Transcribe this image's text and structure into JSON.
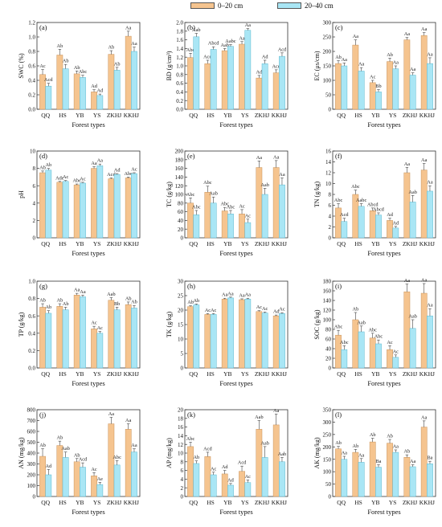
{
  "legend": {
    "items": [
      {
        "label": "0–20 cm",
        "color": "#f5c48f"
      },
      {
        "label": "20–40 cm",
        "color": "#a9e6f5"
      }
    ]
  },
  "chart_data": [
    {
      "type": "bar",
      "panel": "(a)",
      "ylabel": "SWC (%)",
      "xlabel": "Forest types",
      "categories": [
        "QQ",
        "HS",
        "YB",
        "YS",
        "ZKHJ",
        "KKHJ"
      ],
      "ylim": [
        0,
        1.2
      ],
      "yticks": [
        "0.0",
        "0.2",
        "0.4",
        "0.6",
        "0.8",
        "1.0",
        "1.2"
      ],
      "series": [
        {
          "name": "0–20 cm",
          "values": [
            0.48,
            0.75,
            0.49,
            0.24,
            0.76,
            1.01
          ],
          "errors": [
            0.07,
            0.08,
            0.04,
            0.03,
            0.05,
            0.07
          ],
          "letters": [
            "Ac",
            "Ab",
            "Ab",
            "Ad",
            "Ab",
            "Aa"
          ]
        },
        {
          "name": "20–40 cm",
          "values": [
            0.32,
            0.56,
            0.44,
            0.19,
            0.54,
            0.8
          ],
          "errors": [
            0.04,
            0.06,
            0.03,
            0.02,
            0.04,
            0.06
          ],
          "letters": [
            "Acd",
            "Ab",
            "Abc",
            "Ad",
            "Ab",
            "Aa"
          ]
        }
      ]
    },
    {
      "type": "bar",
      "panel": "(b)",
      "ylabel": "BD (g/cm³)",
      "xlabel": "Forest types",
      "categories": [
        "QQ",
        "HS",
        "YB",
        "YS",
        "ZKHJ",
        "KKHJ"
      ],
      "ylim": [
        0,
        2.0
      ],
      "yticks": [
        "0.0",
        "0.2",
        "0.4",
        "0.6",
        "0.8",
        "1.0",
        "1.2",
        "1.4",
        "1.6",
        "1.8",
        "2.0"
      ],
      "series": [
        {
          "name": "0–20 cm",
          "values": [
            1.19,
            1.05,
            1.35,
            1.5,
            0.72,
            0.84
          ],
          "errors": [
            0.1,
            0.08,
            0.05,
            0.06,
            0.06,
            0.07
          ],
          "letters": [
            "Abc",
            "Acd",
            "Aab",
            "Aa",
            "Ad",
            "Acd"
          ]
        },
        {
          "name": "20–40 cm",
          "values": [
            1.67,
            1.38,
            1.45,
            1.82,
            1.05,
            1.22
          ],
          "errors": [
            0.08,
            0.06,
            0.04,
            0.04,
            0.08,
            0.08
          ],
          "letters": [
            "Aab",
            "Abcd",
            "Aabc",
            "Aa",
            "Ad",
            "Acd"
          ]
        }
      ]
    },
    {
      "type": "bar",
      "panel": "(c)",
      "ylabel": "EC (μs/cm)",
      "xlabel": "Forest types",
      "categories": [
        "QQ",
        "HS",
        "YB",
        "YS",
        "ZKHJ",
        "KKHJ"
      ],
      "ylim": [
        0,
        300
      ],
      "yticks": [
        "0",
        "50",
        "100",
        "150",
        "200",
        "250",
        "300"
      ],
      "series": [
        {
          "name": "0–20 cm",
          "values": [
            158,
            222,
            92,
            165,
            240,
            255
          ],
          "errors": [
            10,
            18,
            8,
            12,
            8,
            10
          ],
          "letters": [
            "Ab",
            "Aa",
            "Ac",
            "Ab",
            "Aa",
            "Aa"
          ]
        },
        {
          "name": "20–40 cm",
          "values": [
            150,
            132,
            60,
            140,
            118,
            158
          ],
          "errors": [
            10,
            12,
            8,
            10,
            8,
            20
          ],
          "letters": [
            "Aa",
            "Aa",
            "Bb",
            "Aa",
            "Aa",
            "Aa"
          ]
        }
      ]
    },
    {
      "type": "bar",
      "panel": "(d)",
      "ylabel": "pH",
      "xlabel": "Forest types",
      "categories": [
        "QQ",
        "HS",
        "YB",
        "YS",
        "ZKHJ",
        "KKHJ"
      ],
      "ylim": [
        0,
        10
      ],
      "yticks": [
        "0",
        "2",
        "4",
        "6",
        "8",
        "10"
      ],
      "series": [
        {
          "name": "0–20 cm",
          "values": [
            7.5,
            6.4,
            6.1,
            8.0,
            6.8,
            6.9
          ],
          "errors": [
            0.2,
            0.1,
            0.1,
            0.2,
            0.1,
            0.1
          ],
          "letters": [
            "Ab",
            "Adc",
            "Abc",
            "Aa",
            "Acd",
            "Abc"
          ]
        },
        {
          "name": "20–40 cm",
          "values": [
            7.8,
            6.5,
            6.3,
            8.3,
            7.3,
            7.4
          ],
          "errors": [
            0.2,
            0.1,
            0.1,
            0.2,
            0.1,
            0.1
          ],
          "letters": [
            "Ab",
            "Ac",
            "Ac",
            "Aa",
            "Ad",
            "Ac"
          ]
        }
      ]
    },
    {
      "type": "bar",
      "panel": "(e)",
      "ylabel": "TC (g/kg)",
      "xlabel": "Forest types",
      "categories": [
        "QQ",
        "HS",
        "YB",
        "YS",
        "ZKHJ",
        "KKHJ"
      ],
      "ylim": [
        0,
        200
      ],
      "yticks": [
        "0",
        "20",
        "40",
        "60",
        "80",
        "100",
        "120",
        "140",
        "160",
        "180",
        "200"
      ],
      "series": [
        {
          "name": "0–20 cm",
          "values": [
            80,
            105,
            62,
            55,
            162,
            162
          ],
          "errors": [
            12,
            14,
            8,
            10,
            15,
            16
          ],
          "letters": [
            "Abc",
            "Abc",
            "Abc",
            "Ac",
            "Aa",
            "Aa"
          ]
        },
        {
          "name": "20–40 cm",
          "values": [
            53,
            80,
            55,
            35,
            100,
            122
          ],
          "errors": [
            10,
            14,
            8,
            8,
            14,
            16
          ],
          "letters": [
            "Abc",
            "Aab",
            "Abc",
            "Ac",
            "Aab",
            "Aa"
          ]
        }
      ]
    },
    {
      "type": "bar",
      "panel": "(f)",
      "ylabel": "TN (g/kg)",
      "xlabel": "Forest types",
      "categories": [
        "QQ",
        "HS",
        "YB",
        "YS",
        "ZKHJ",
        "KKHJ"
      ],
      "ylim": [
        0,
        16
      ],
      "yticks": [
        "0",
        "2",
        "4",
        "6",
        "8",
        "10",
        "12",
        "14",
        "16"
      ],
      "series": [
        {
          "name": "0–20 cm",
          "values": [
            5.5,
            8.0,
            5.0,
            3.2,
            12.0,
            12.5
          ],
          "errors": [
            0.8,
            0.8,
            0.5,
            0.4,
            1.0,
            1.2
          ],
          "letters": [
            "Abc",
            "Abc",
            "Abcd",
            "Ad",
            "Aa",
            "Aa"
          ]
        },
        {
          "name": "20–40 cm",
          "values": [
            3.0,
            5.8,
            4.2,
            1.8,
            6.6,
            8.6
          ],
          "errors": [
            0.6,
            0.5,
            0.4,
            0.3,
            1.2,
            1.0
          ],
          "letters": [
            "Acd",
            "Aabc",
            "Abcd",
            "Ad",
            "Aab",
            "Aa"
          ]
        }
      ]
    },
    {
      "type": "bar",
      "panel": "(g)",
      "ylabel": "TP (g/kg)",
      "xlabel": "Forest types",
      "categories": [
        "QQ",
        "HS",
        "YB",
        "YS",
        "ZKHJ",
        "KKHJ"
      ],
      "ylim": [
        0,
        1.0
      ],
      "yticks": [
        "0.0",
        "0.2",
        "0.4",
        "0.6",
        "0.8",
        "1.0"
      ],
      "series": [
        {
          "name": "0–20 cm",
          "values": [
            0.7,
            0.71,
            0.84,
            0.45,
            0.78,
            0.73
          ],
          "errors": [
            0.04,
            0.03,
            0.02,
            0.03,
            0.03,
            0.03
          ],
          "letters": [
            "Ab",
            "Ab",
            "Aa",
            "Ac",
            "Aab",
            "Ab"
          ]
        },
        {
          "name": "20–40 cm",
          "values": [
            0.63,
            0.67,
            0.82,
            0.4,
            0.67,
            0.69
          ],
          "errors": [
            0.03,
            0.03,
            0.02,
            0.02,
            0.03,
            0.03
          ],
          "letters": [
            "Ab",
            "Ab",
            "Aa",
            "Ac",
            "Bb",
            "Ab"
          ]
        }
      ]
    },
    {
      "type": "bar",
      "panel": "(h)",
      "ylabel": "TK (g/kg)",
      "xlabel": "Forest types",
      "categories": [
        "QQ",
        "HS",
        "YB",
        "YS",
        "ZKHJ",
        "KKHJ"
      ],
      "ylim": [
        0,
        30
      ],
      "yticks": [
        "0",
        "5",
        "10",
        "15",
        "20",
        "25",
        "30"
      ],
      "series": [
        {
          "name": "0–20 cm",
          "values": [
            21.2,
            18.5,
            23.8,
            23.6,
            19.5,
            18.0
          ],
          "errors": [
            0.3,
            0.3,
            0.3,
            0.3,
            0.3,
            0.3
          ],
          "letters": [
            "Ab",
            "Ac",
            "Aa",
            "Aa",
            "Ac",
            "Ad"
          ]
        },
        {
          "name": "20–40 cm",
          "values": [
            21.8,
            18.5,
            24.2,
            23.8,
            19.0,
            18.8
          ],
          "errors": [
            0.3,
            0.3,
            0.3,
            0.3,
            0.3,
            0.3
          ],
          "letters": [
            "Ab",
            "Ac",
            "Aa",
            "Aa",
            "Ac",
            "Ac"
          ]
        }
      ]
    },
    {
      "type": "bar",
      "panel": "(i)",
      "ylabel": "SOC (g/kg)",
      "xlabel": "Forest types",
      "categories": [
        "QQ",
        "HS",
        "YB",
        "YS",
        "ZKHJ",
        "KKHJ"
      ],
      "ylim": [
        0,
        180
      ],
      "yticks": [
        "0",
        "20",
        "40",
        "60",
        "80",
        "100",
        "120",
        "140",
        "160",
        "180"
      ],
      "series": [
        {
          "name": "0–20 cm",
          "values": [
            68,
            100,
            62,
            38,
            158,
            155
          ],
          "errors": [
            10,
            15,
            10,
            8,
            16,
            20
          ],
          "letters": [
            "Abc",
            "Ab",
            "Abc",
            "Ac",
            "Aa",
            "Aa"
          ]
        },
        {
          "name": "20–40 cm",
          "values": [
            38,
            75,
            50,
            22,
            82,
            108
          ],
          "errors": [
            8,
            12,
            8,
            5,
            18,
            15
          ],
          "letters": [
            "Abc",
            "Aab",
            "Abc",
            "Ac",
            "Aab",
            "Aa"
          ]
        }
      ]
    },
    {
      "type": "bar",
      "panel": "(j)",
      "ylabel": "AN (mg/kg)",
      "xlabel": "Forest types",
      "categories": [
        "QQ",
        "HS",
        "YB",
        "YS",
        "ZKHJ",
        "KKHJ"
      ],
      "ylim": [
        0,
        800
      ],
      "yticks": [
        "0",
        "100",
        "200",
        "300",
        "400",
        "500",
        "600",
        "700",
        "800"
      ],
      "series": [
        {
          "name": "0–20 cm",
          "values": [
            370,
            470,
            320,
            190,
            670,
            620
          ],
          "errors": [
            70,
            40,
            30,
            30,
            60,
            50
          ],
          "letters": [
            "Ab",
            "Ab",
            "Ab",
            "Ac",
            "Aa",
            "Aa"
          ]
        },
        {
          "name": "20–40 cm",
          "values": [
            200,
            360,
            270,
            110,
            290,
            410
          ],
          "errors": [
            50,
            50,
            40,
            20,
            40,
            30
          ],
          "letters": [
            "Ad",
            "Aab",
            "Acd",
            "Ae",
            "Abc",
            "Aa"
          ]
        }
      ]
    },
    {
      "type": "bar",
      "panel": "(k)",
      "ylabel": "AP (mg/kg)",
      "xlabel": "Forest types",
      "categories": [
        "QQ",
        "HS",
        "YB",
        "YS",
        "ZKHJ",
        "KKHJ"
      ],
      "ylim": [
        0,
        20
      ],
      "yticks": [
        "0",
        "2",
        "4",
        "6",
        "8",
        "10",
        "12",
        "14",
        "16",
        "18",
        "20"
      ],
      "series": [
        {
          "name": "0–20 cm",
          "values": [
            11.5,
            9.2,
            5.2,
            5.8,
            15.5,
            16.5
          ],
          "errors": [
            1.0,
            1.0,
            0.8,
            1.2,
            2.0,
            2.5
          ],
          "letters": [
            "Abc",
            "Acd",
            "Ad",
            "Acd",
            "Aab",
            "Aa"
          ]
        },
        {
          "name": "20–40 cm",
          "values": [
            7.6,
            5.0,
            2.6,
            3.2,
            9.0,
            8.0
          ],
          "errors": [
            0.6,
            0.6,
            0.4,
            0.6,
            2.5,
            1.0
          ],
          "letters": [
            "Ab",
            "Ac",
            "Ad",
            "Ac",
            "Aab",
            "Aab"
          ]
        }
      ]
    },
    {
      "type": "bar",
      "panel": "(l)",
      "ylabel": "AK (mg/kg)",
      "xlabel": "Forest types",
      "categories": [
        "QQ",
        "HS",
        "YB",
        "YS",
        "ZKHJ",
        "KKHJ"
      ],
      "ylim": [
        0,
        350
      ],
      "yticks": [
        "0",
        "50",
        "100",
        "150",
        "200",
        "250",
        "300",
        "350"
      ],
      "series": [
        {
          "name": "0–20 cm",
          "values": [
            192,
            178,
            220,
            215,
            158,
            280
          ],
          "errors": [
            10,
            12,
            15,
            15,
            10,
            25
          ],
          "letters": [
            "Ab",
            "Ab",
            "Ab",
            "Ab",
            "Ab",
            "Aa"
          ]
        },
        {
          "name": "20–40 cm",
          "values": [
            150,
            138,
            118,
            178,
            120,
            132
          ],
          "errors": [
            12,
            15,
            10,
            10,
            8,
            10
          ],
          "letters": [
            "Aa",
            "Aa",
            "Ba",
            "Aa",
            "Aa",
            "Ba"
          ]
        }
      ]
    }
  ]
}
